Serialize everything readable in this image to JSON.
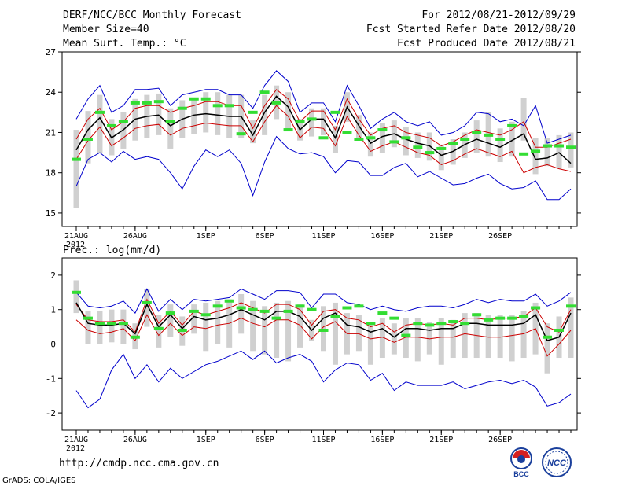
{
  "header": {
    "title": "DERF/NCC/BCC Monthly Forecast",
    "member_size": "Member Size=40",
    "variable": "Mean Surf. Temp.: °C",
    "period": "For 2012/08/21-2012/09/29",
    "refer_date": "Fcst Started Refer Date 2012/08/20",
    "produced_date": "Fcst Produced Date 2012/08/21"
  },
  "footer": {
    "url": "http://cmdp.ncc.cma.gov.cn",
    "credit": "GrADS: COLA/IGES",
    "logo_left": "BCC",
    "logo_right": "NCC"
  },
  "chart_data": [
    {
      "type": "line",
      "title": "Mean Surf. Temp.: °C",
      "xlabel": "",
      "ylabel": "",
      "ylim": [
        14,
        27
      ],
      "yticks": [
        15,
        18,
        21,
        24,
        27
      ],
      "xticks": [
        {
          "day": 0,
          "label": "21AUG"
        },
        {
          "day": 5,
          "label": "26AUG"
        },
        {
          "day": 11,
          "label": "1SEP"
        },
        {
          "day": 16,
          "label": "6SEP"
        },
        {
          "day": 21,
          "label": "11SEP"
        },
        {
          "day": 26,
          "label": "16SEP"
        },
        {
          "day": 31,
          "label": "21SEP"
        },
        {
          "day": 36,
          "label": "26SEP"
        }
      ],
      "year_label": "2012",
      "series": [
        {
          "name": "max",
          "color": "#0000cc",
          "values": [
            22.0,
            23.5,
            24.5,
            22.5,
            23.0,
            24.2,
            24.2,
            24.3,
            23.0,
            23.8,
            24.0,
            24.2,
            24.2,
            23.8,
            23.8,
            22.8,
            24.5,
            25.6,
            24.8,
            22.5,
            23.2,
            23.2,
            21.8,
            24.5,
            23.0,
            21.3,
            22.0,
            22.5,
            21.8,
            21.5,
            21.8,
            20.8,
            21.0,
            21.5,
            22.5,
            22.4,
            21.8,
            22.0,
            21.5,
            23.0,
            20.2,
            20.5,
            20.8
          ]
        },
        {
          "name": "upper",
          "color": "#cc0000",
          "values": [
            20.5,
            22.0,
            22.8,
            21.2,
            21.8,
            22.8,
            23.0,
            23.0,
            22.5,
            22.8,
            23.0,
            23.3,
            23.3,
            23.0,
            23.0,
            21.3,
            23.0,
            24.2,
            23.5,
            21.8,
            22.6,
            22.6,
            21.2,
            23.5,
            22.0,
            20.8,
            21.3,
            21.5,
            21.0,
            20.8,
            20.6,
            20.0,
            20.3,
            20.8,
            21.2,
            21.0,
            20.8,
            21.2,
            21.8,
            19.9,
            19.9,
            20.2,
            20.5
          ]
        },
        {
          "name": "mean",
          "color": "#000000",
          "values": [
            19.7,
            21.2,
            22.1,
            20.6,
            21.2,
            22.0,
            22.2,
            22.3,
            21.5,
            22.0,
            22.3,
            22.4,
            22.3,
            22.2,
            22.2,
            20.8,
            22.5,
            23.7,
            22.9,
            21.2,
            22.0,
            22.0,
            20.6,
            22.9,
            21.5,
            20.2,
            20.7,
            20.9,
            20.5,
            20.2,
            20.0,
            19.3,
            19.6,
            20.1,
            20.5,
            20.2,
            19.9,
            20.4,
            20.9,
            19.0,
            19.1,
            19.5,
            18.7
          ]
        },
        {
          "name": "lower",
          "color": "#cc0000",
          "values": [
            19.0,
            20.4,
            21.4,
            20.0,
            20.6,
            21.3,
            21.5,
            21.6,
            20.8,
            21.3,
            21.5,
            21.7,
            21.6,
            21.5,
            21.5,
            20.3,
            21.8,
            23.0,
            22.2,
            20.6,
            21.4,
            21.3,
            20.0,
            22.2,
            20.8,
            19.6,
            20.0,
            20.3,
            19.9,
            19.5,
            19.3,
            18.6,
            18.9,
            19.4,
            19.8,
            19.5,
            19.2,
            19.6,
            18.0,
            18.4,
            18.6,
            18.3,
            18.1
          ]
        },
        {
          "name": "min",
          "color": "#0000cc",
          "values": [
            17.0,
            19.0,
            19.5,
            18.8,
            19.6,
            19.0,
            19.2,
            19.0,
            18.0,
            16.8,
            18.5,
            19.7,
            19.2,
            19.7,
            18.7,
            16.3,
            18.8,
            20.7,
            19.8,
            19.4,
            19.5,
            19.2,
            18.0,
            18.9,
            18.8,
            17.8,
            17.8,
            18.4,
            18.7,
            17.7,
            18.1,
            17.6,
            17.1,
            17.2,
            17.6,
            17.9,
            17.2,
            16.8,
            16.9,
            17.4,
            16.0,
            16.0,
            16.8
          ]
        }
      ],
      "boxes": {
        "color": "#d0d0d0",
        "low": [
          15.4,
          18.7,
          19.5,
          19.3,
          19.8,
          20.4,
          20.6,
          20.8,
          19.8,
          20.6,
          20.9,
          21.0,
          20.8,
          20.6,
          20.6,
          20.2,
          20.8,
          22.0,
          21.2,
          20.4,
          20.7,
          20.8,
          19.5,
          21.8,
          20.5,
          19.2,
          19.5,
          19.9,
          19.3,
          19.1,
          18.9,
          18.2,
          18.6,
          19.1,
          19.5,
          19.2,
          18.8,
          19.2,
          20.4,
          17.9,
          18.5,
          18.3,
          18.4
        ],
        "high": [
          21.2,
          22.6,
          23.8,
          22.0,
          22.5,
          23.5,
          23.8,
          23.9,
          22.8,
          23.4,
          23.5,
          24.0,
          24.0,
          23.8,
          23.8,
          21.9,
          23.8,
          24.5,
          24.0,
          22.0,
          22.8,
          22.8,
          21.5,
          24.0,
          22.3,
          21.0,
          21.7,
          21.9,
          21.4,
          21.0,
          21.0,
          20.1,
          20.5,
          21.0,
          21.9,
          22.5,
          21.3,
          21.8,
          23.6,
          20.6,
          20.6,
          20.8,
          21.0
        ]
      },
      "green_marks": {
        "color": "#33dd33",
        "values": [
          19.0,
          20.5,
          22.5,
          21.5,
          21.8,
          23.2,
          23.2,
          23.3,
          21.8,
          22.8,
          23.5,
          23.5,
          23.0,
          23.0,
          20.9,
          22.5,
          24.0,
          23.2,
          21.2,
          21.8,
          22.0,
          20.6,
          22.5,
          21.0,
          20.5,
          20.6,
          21.2,
          20.3,
          20.6,
          19.9,
          19.5,
          19.8,
          20.2,
          20.5,
          21.0,
          20.8,
          20.5,
          21.5,
          19.4,
          19.6,
          20.0,
          20.0,
          19.9
        ]
      }
    },
    {
      "type": "line",
      "title": "Prec.: log(mm/d)",
      "xlabel": "",
      "ylabel": "",
      "ylim": [
        -2.5,
        2.5
      ],
      "yticks": [
        -2,
        -1,
        0,
        1,
        2
      ],
      "xticks": [
        {
          "day": 0,
          "label": "21AUG"
        },
        {
          "day": 5,
          "label": "26AUG"
        },
        {
          "day": 11,
          "label": "1SEP"
        },
        {
          "day": 16,
          "label": "6SEP"
        },
        {
          "day": 21,
          "label": "11SEP"
        },
        {
          "day": 26,
          "label": "16SEP"
        },
        {
          "day": 31,
          "label": "21SEP"
        },
        {
          "day": 36,
          "label": "26SEP"
        }
      ],
      "year_label": "2012",
      "series": [
        {
          "name": "max",
          "color": "#0000cc",
          "values": [
            1.5,
            1.1,
            1.05,
            1.1,
            1.25,
            0.9,
            1.6,
            0.95,
            1.3,
            1.0,
            1.3,
            1.25,
            1.3,
            1.35,
            1.6,
            1.45,
            1.3,
            1.55,
            1.55,
            1.5,
            1.05,
            1.45,
            1.45,
            1.2,
            1.15,
            1.0,
            1.1,
            1.0,
            0.95,
            1.05,
            1.1,
            1.1,
            1.05,
            1.15,
            1.3,
            1.2,
            1.3,
            1.25,
            1.25,
            1.45,
            1.1,
            1.25,
            1.5
          ]
        },
        {
          "name": "upper",
          "color": "#cc0000",
          "values": [
            1.15,
            0.7,
            0.65,
            0.65,
            0.7,
            0.35,
            1.3,
            0.6,
            0.95,
            0.55,
            0.95,
            0.85,
            0.95,
            1.05,
            1.2,
            1.05,
            0.9,
            1.15,
            1.15,
            1.0,
            0.55,
            0.95,
            1.0,
            0.75,
            0.7,
            0.5,
            0.6,
            0.35,
            0.55,
            0.6,
            0.55,
            0.6,
            0.55,
            0.75,
            0.75,
            0.7,
            0.75,
            0.75,
            0.8,
            1.05,
            0.5,
            0.35,
            1.0
          ]
        },
        {
          "name": "mean",
          "color": "#000000",
          "values": [
            1.2,
            0.6,
            0.55,
            0.55,
            0.6,
            0.3,
            1.15,
            0.5,
            0.85,
            0.45,
            0.8,
            0.7,
            0.75,
            0.85,
            1.0,
            0.85,
            0.7,
            0.95,
            0.95,
            0.8,
            0.4,
            0.75,
            0.9,
            0.55,
            0.5,
            0.35,
            0.45,
            0.2,
            0.45,
            0.45,
            0.4,
            0.45,
            0.45,
            0.6,
            0.6,
            0.55,
            0.55,
            0.55,
            0.6,
            0.85,
            0.1,
            0.2,
            0.9
          ]
        },
        {
          "name": "lower",
          "color": "#cc0000",
          "values": [
            0.7,
            0.4,
            0.3,
            0.35,
            0.45,
            0.1,
            0.85,
            0.25,
            0.6,
            0.25,
            0.5,
            0.45,
            0.55,
            0.6,
            0.75,
            0.6,
            0.5,
            0.7,
            0.7,
            0.55,
            0.15,
            0.5,
            0.65,
            0.3,
            0.3,
            0.15,
            0.2,
            0.05,
            0.2,
            0.2,
            0.15,
            0.2,
            0.2,
            0.3,
            0.25,
            0.2,
            0.2,
            0.25,
            0.3,
            0.45,
            -0.35,
            0.0,
            0.4
          ]
        },
        {
          "name": "min",
          "color": "#0000cc",
          "values": [
            -1.35,
            -1.85,
            -1.6,
            -0.75,
            -0.3,
            -1.0,
            -0.6,
            -1.1,
            -0.7,
            -1.0,
            -0.8,
            -0.6,
            -0.5,
            -0.35,
            -0.2,
            -0.45,
            -0.2,
            -0.55,
            -0.4,
            -0.3,
            -0.5,
            -1.1,
            -0.75,
            -0.55,
            -0.6,
            -1.05,
            -0.85,
            -1.35,
            -1.1,
            -1.2,
            -1.2,
            -1.2,
            -1.1,
            -1.3,
            -1.2,
            -1.1,
            -1.05,
            -1.15,
            -1.05,
            -1.25,
            -1.8,
            -1.7,
            -1.45
          ]
        },
        {
          "green_line": true
        }
      ],
      "boxes": {
        "color": "#d0d0d0",
        "low": [
          0.9,
          0.0,
          0.0,
          0.05,
          0.0,
          -0.15,
          0.5,
          -0.1,
          0.2,
          -0.05,
          0.3,
          -0.2,
          0.0,
          -0.1,
          0.3,
          -0.2,
          -0.3,
          -0.4,
          -0.5,
          -0.1,
          0.1,
          -0.2,
          -0.6,
          -0.3,
          -0.2,
          -0.6,
          -0.4,
          -0.3,
          -0.4,
          -0.5,
          -0.3,
          -0.6,
          -0.4,
          -0.4,
          -0.4,
          -0.4,
          -0.4,
          -0.5,
          -0.4,
          -0.3,
          -0.85,
          -0.4,
          -0.4
        ],
        "high": [
          1.85,
          0.95,
          0.95,
          1.0,
          1.0,
          0.6,
          1.6,
          0.85,
          1.15,
          0.8,
          1.15,
          1.2,
          1.25,
          1.3,
          1.45,
          1.25,
          1.1,
          1.2,
          1.25,
          1.15,
          0.7,
          1.1,
          1.2,
          0.9,
          0.85,
          0.65,
          0.75,
          0.6,
          0.75,
          0.75,
          0.65,
          0.75,
          0.7,
          0.9,
          0.9,
          0.85,
          0.85,
          0.85,
          0.95,
          1.2,
          0.6,
          0.8,
          1.35
        ]
      },
      "green_marks": {
        "color": "#33dd33",
        "values": [
          1.5,
          0.75,
          0.6,
          0.6,
          0.6,
          0.2,
          1.2,
          0.45,
          0.9,
          0.4,
          0.95,
          0.85,
          1.1,
          1.25,
          1.05,
          1.0,
          0.95,
          0.75,
          0.95,
          1.1,
          1.0,
          0.4,
          0.8,
          1.05,
          1.1,
          0.6,
          0.9,
          0.75,
          0.25,
          0.6,
          0.55,
          0.6,
          0.65,
          0.6,
          0.85,
          0.7,
          0.75,
          0.75,
          0.8,
          1.05,
          0.2,
          0.4,
          1.1
        ]
      }
    }
  ]
}
